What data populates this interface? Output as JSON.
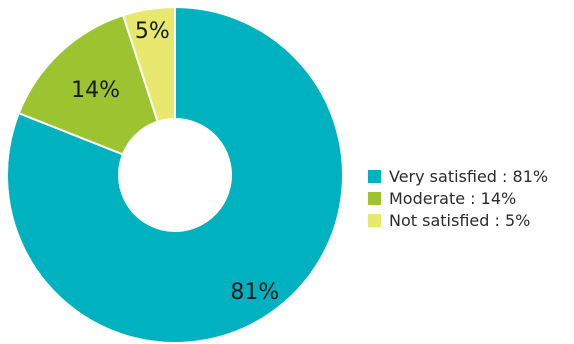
{
  "chart_data": {
    "type": "pie",
    "categories": [
      "Very satisfied",
      "Moderate",
      "Not satisfied"
    ],
    "values": [
      81,
      14,
      5
    ],
    "slice_labels": [
      "81%",
      "14%",
      "5%"
    ],
    "colors": [
      "#00b2c0",
      "#9cc431",
      "#e8e86e"
    ],
    "legend_position": "right",
    "legend": [
      {
        "label": "Very satisfied : 81%",
        "color": "#00b2c0"
      },
      {
        "label": "Moderate : 14%",
        "color": "#9cc431"
      },
      {
        "label": "Not satisfied : 5%",
        "color": "#e8e86e"
      }
    ],
    "title": ""
  }
}
